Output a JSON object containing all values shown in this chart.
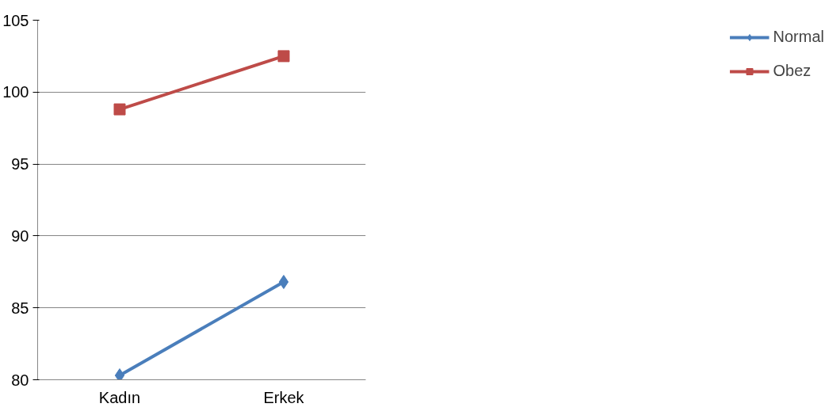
{
  "chart_data": {
    "type": "line",
    "categories": [
      "Kadın",
      "Erkek"
    ],
    "series": [
      {
        "name": "Normal",
        "color": "#4a7ebb",
        "marker": "diamond",
        "values": [
          80.3,
          86.8
        ]
      },
      {
        "name": "Obez",
        "color": "#be4b48",
        "marker": "square",
        "values": [
          98.8,
          102.5
        ]
      }
    ],
    "ylim": [
      80,
      105
    ],
    "yticks": [
      80,
      85,
      90,
      95,
      100,
      105
    ],
    "grid": "y",
    "legend": "right"
  }
}
